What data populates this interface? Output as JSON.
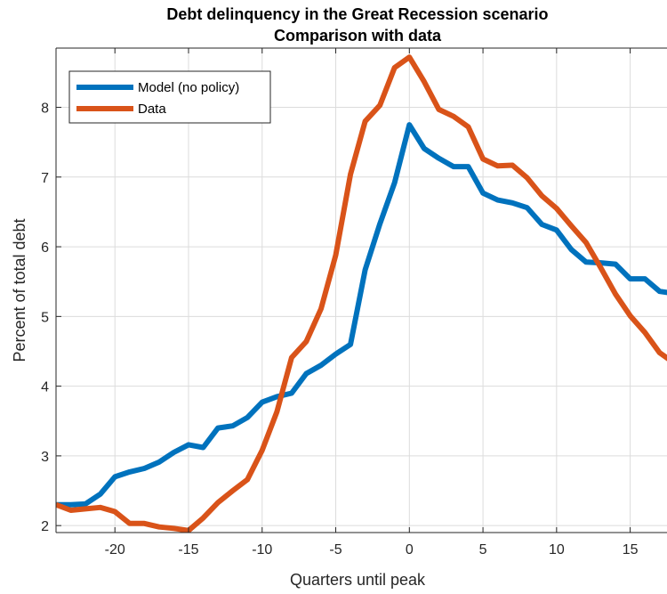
{
  "chart_data": {
    "type": "line",
    "title": "Debt delinquency in the Great Recession scenario",
    "subtitle": "Comparison with data",
    "xlabel": "Quarters until peak",
    "ylabel": "Percent of total debt",
    "xlim": [
      -24,
      17.5
    ],
    "ylim": [
      1.9,
      8.85
    ],
    "xticks": [
      -20,
      -15,
      -10,
      -5,
      0,
      5,
      10,
      15
    ],
    "xtick_labels": [
      "-20",
      "-15",
      "-10",
      "-5",
      "0",
      "5",
      "10",
      "15"
    ],
    "yticks": [
      2,
      3,
      4,
      5,
      6,
      7,
      8
    ],
    "ytick_labels": [
      "2",
      "3",
      "4",
      "5",
      "6",
      "7",
      "8"
    ],
    "grid": true,
    "legend_position": "top-left",
    "x": [
      -24,
      -23,
      -22,
      -21,
      -20,
      -19,
      -18,
      -17,
      -16,
      -15,
      -14,
      -13,
      -12,
      -11,
      -10,
      -9,
      -8,
      -7,
      -6,
      -5,
      -4,
      -3,
      -2,
      -1,
      0,
      1,
      2,
      3,
      4,
      5,
      6,
      7,
      8,
      9,
      10,
      11,
      12,
      13,
      14,
      15,
      16,
      17,
      18
    ],
    "series": [
      {
        "name": "Model (no policy)",
        "color": "#0072BD",
        "values": [
          2.3,
          2.3,
          2.31,
          2.45,
          2.7,
          2.77,
          2.82,
          2.91,
          3.05,
          3.16,
          3.12,
          3.4,
          3.43,
          3.55,
          3.77,
          3.85,
          3.9,
          4.18,
          4.3,
          4.46,
          4.6,
          5.67,
          6.33,
          6.92,
          7.75,
          7.41,
          7.27,
          7.15,
          7.15,
          6.77,
          6.67,
          6.63,
          6.56,
          6.32,
          6.24,
          5.96,
          5.78,
          5.77,
          5.75,
          5.54,
          5.54,
          5.36,
          5.33
        ]
      },
      {
        "name": "Data",
        "color": "#D95319",
        "values": [
          2.3,
          2.22,
          2.24,
          2.26,
          2.2,
          2.03,
          2.03,
          1.98,
          1.96,
          1.93,
          2.11,
          2.33,
          2.5,
          2.66,
          3.08,
          3.63,
          4.41,
          4.64,
          5.11,
          5.88,
          7.04,
          7.8,
          8.03,
          8.57,
          8.72,
          8.37,
          7.97,
          7.87,
          7.72,
          7.26,
          7.16,
          7.17,
          6.99,
          6.73,
          6.55,
          6.3,
          6.06,
          5.7,
          5.32,
          5.01,
          4.77,
          4.48,
          4.33
        ]
      }
    ]
  }
}
